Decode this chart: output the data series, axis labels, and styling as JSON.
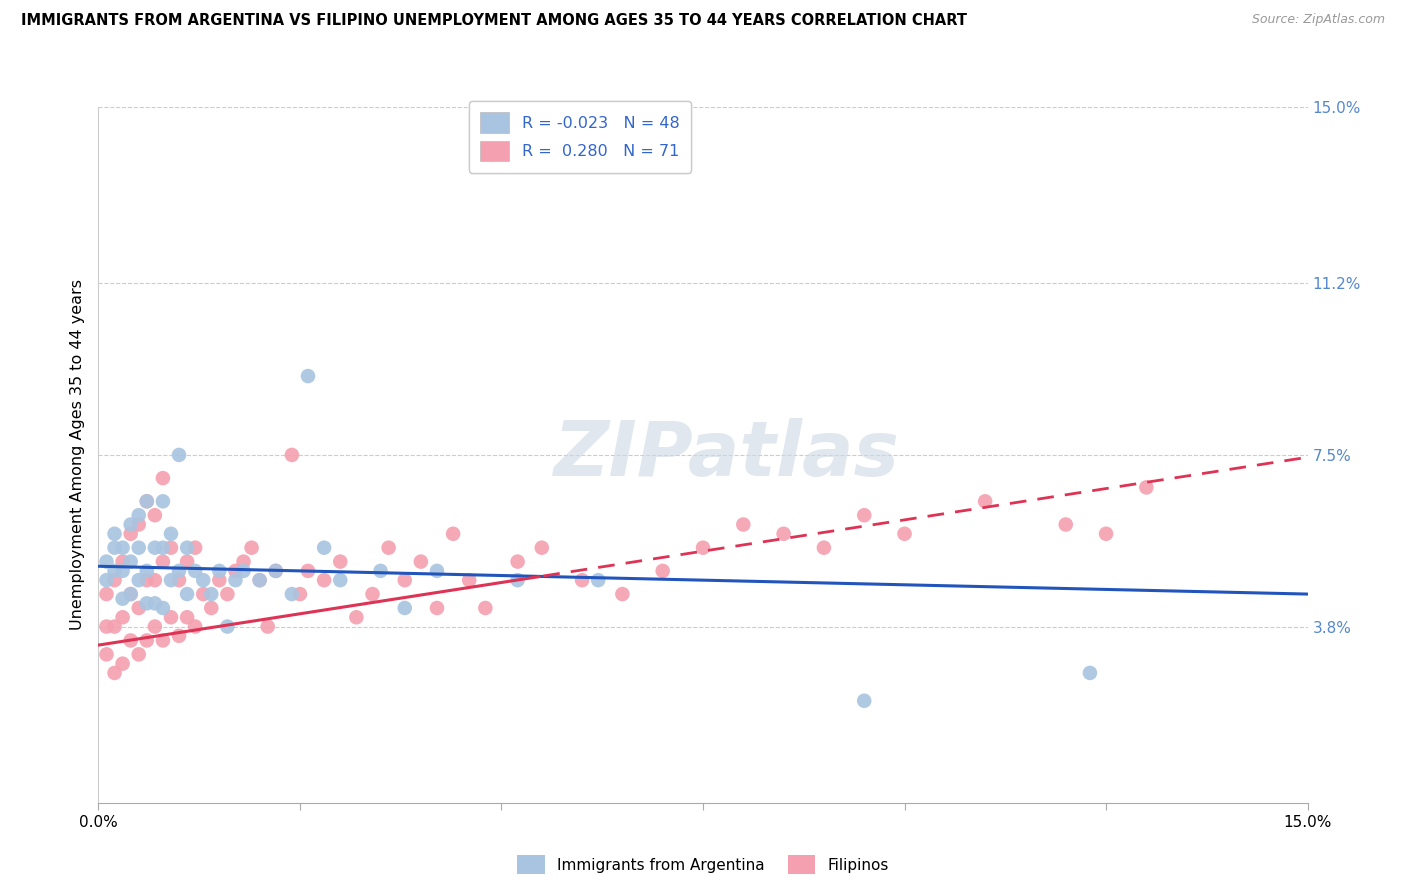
{
  "title": "IMMIGRANTS FROM ARGENTINA VS FILIPINO UNEMPLOYMENT AMONG AGES 35 TO 44 YEARS CORRELATION CHART",
  "source": "Source: ZipAtlas.com",
  "ylabel": "Unemployment Among Ages 35 to 44 years",
  "xlim": [
    0,
    0.15
  ],
  "ylim": [
    0,
    0.15
  ],
  "ytick_labels_right": [
    "15.0%",
    "11.2%",
    "7.5%",
    "3.8%"
  ],
  "ytick_positions_right": [
    0.15,
    0.112,
    0.075,
    0.038
  ],
  "legend_label1": "Immigrants from Argentina",
  "legend_label2": "Filipinos",
  "R1": "-0.023",
  "N1": "48",
  "R2": "0.280",
  "N2": "71",
  "color_blue": "#a8c4e0",
  "color_pink": "#f4a0b0",
  "line_color_blue": "#2255bb",
  "line_color_pink": "#dd3355",
  "watermark": "ZIPatlas",
  "argentina_x": [
    0.001,
    0.001,
    0.002,
    0.002,
    0.002,
    0.003,
    0.003,
    0.003,
    0.004,
    0.004,
    0.004,
    0.005,
    0.005,
    0.005,
    0.006,
    0.006,
    0.006,
    0.007,
    0.007,
    0.008,
    0.008,
    0.008,
    0.009,
    0.009,
    0.01,
    0.01,
    0.011,
    0.011,
    0.012,
    0.013,
    0.014,
    0.015,
    0.016,
    0.017,
    0.018,
    0.02,
    0.022,
    0.024,
    0.026,
    0.028,
    0.03,
    0.035,
    0.038,
    0.042,
    0.052,
    0.062,
    0.095,
    0.123
  ],
  "argentina_y": [
    0.048,
    0.052,
    0.05,
    0.055,
    0.058,
    0.044,
    0.05,
    0.055,
    0.045,
    0.052,
    0.06,
    0.048,
    0.055,
    0.062,
    0.043,
    0.05,
    0.065,
    0.043,
    0.055,
    0.042,
    0.055,
    0.065,
    0.048,
    0.058,
    0.05,
    0.075,
    0.045,
    0.055,
    0.05,
    0.048,
    0.045,
    0.05,
    0.038,
    0.048,
    0.05,
    0.048,
    0.05,
    0.045,
    0.092,
    0.055,
    0.048,
    0.05,
    0.042,
    0.05,
    0.048,
    0.048,
    0.022,
    0.028
  ],
  "filipino_x": [
    0.001,
    0.001,
    0.001,
    0.002,
    0.002,
    0.002,
    0.003,
    0.003,
    0.003,
    0.004,
    0.004,
    0.004,
    0.005,
    0.005,
    0.005,
    0.006,
    0.006,
    0.006,
    0.007,
    0.007,
    0.007,
    0.008,
    0.008,
    0.008,
    0.009,
    0.009,
    0.01,
    0.01,
    0.011,
    0.011,
    0.012,
    0.012,
    0.013,
    0.014,
    0.015,
    0.016,
    0.017,
    0.018,
    0.019,
    0.02,
    0.021,
    0.022,
    0.024,
    0.025,
    0.026,
    0.028,
    0.03,
    0.032,
    0.034,
    0.036,
    0.038,
    0.04,
    0.042,
    0.044,
    0.046,
    0.048,
    0.052,
    0.055,
    0.06,
    0.065,
    0.07,
    0.075,
    0.08,
    0.085,
    0.09,
    0.095,
    0.1,
    0.11,
    0.12,
    0.125,
    0.13
  ],
  "filipino_y": [
    0.032,
    0.038,
    0.045,
    0.028,
    0.038,
    0.048,
    0.03,
    0.04,
    0.052,
    0.035,
    0.045,
    0.058,
    0.032,
    0.042,
    0.06,
    0.035,
    0.048,
    0.065,
    0.038,
    0.048,
    0.062,
    0.035,
    0.052,
    0.07,
    0.04,
    0.055,
    0.036,
    0.048,
    0.04,
    0.052,
    0.038,
    0.055,
    0.045,
    0.042,
    0.048,
    0.045,
    0.05,
    0.052,
    0.055,
    0.048,
    0.038,
    0.05,
    0.075,
    0.045,
    0.05,
    0.048,
    0.052,
    0.04,
    0.045,
    0.055,
    0.048,
    0.052,
    0.042,
    0.058,
    0.048,
    0.042,
    0.052,
    0.055,
    0.048,
    0.045,
    0.05,
    0.055,
    0.06,
    0.058,
    0.055,
    0.062,
    0.058,
    0.065,
    0.06,
    0.058,
    0.068
  ]
}
